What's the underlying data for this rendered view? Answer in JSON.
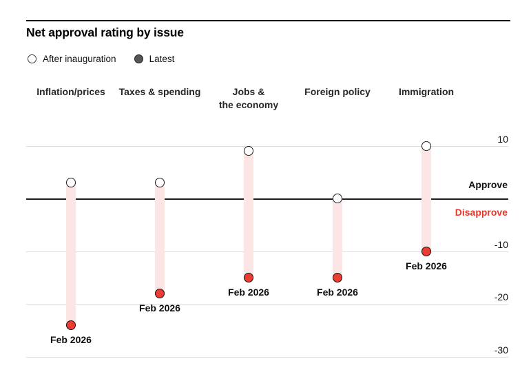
{
  "page": {
    "title": "Net approval rating by issue"
  },
  "legend": [
    {
      "label": "After inauguration",
      "marker": "open-circle"
    },
    {
      "label": "Latest",
      "marker": "filled-circle"
    }
  ],
  "chart_data": {
    "type": "scatter",
    "subtype": "dumbbell-range",
    "title": "Net approval rating by issue",
    "categories": [
      "Inflation/prices",
      "Taxes & spending",
      "Jobs &\nthe economy",
      "Foreign policy",
      "Immigration"
    ],
    "series": [
      {
        "name": "After inauguration",
        "values": [
          3,
          3,
          9,
          0,
          10
        ]
      },
      {
        "name": "Latest",
        "values": [
          -24,
          -18,
          -15,
          -15,
          -10
        ]
      }
    ],
    "latest_point_labels": [
      "Feb 2026",
      "Feb 2026",
      "Feb 2026",
      "Feb 2026",
      "Feb 2026"
    ],
    "yticks": [
      10,
      -10,
      -20,
      -30
    ],
    "ylim": [
      -33,
      14
    ],
    "grid": true,
    "zero_line": true,
    "zero_labels": {
      "above": "Approve",
      "below": "Disapprove"
    },
    "legend_position": "top-left"
  },
  "colors": {
    "accent_red": "#ed3c32",
    "bar_pink": "#fbe6e5",
    "disapprove_red": "#e8362a",
    "gridline": "#dcdcdc",
    "zero_line": "#1d1d1d",
    "latest_legend_gray": "#555555"
  }
}
